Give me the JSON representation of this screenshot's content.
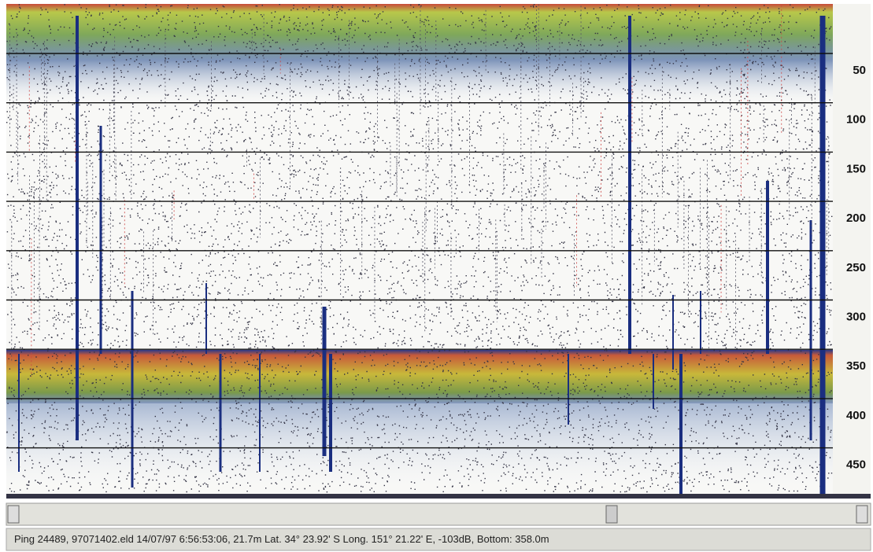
{
  "depth_scale": {
    "labels": [
      "50",
      "100",
      "150",
      "200",
      "250",
      "300",
      "350",
      "400",
      "450"
    ]
  },
  "status_bar": {
    "text": "Ping 24489, 97071402.eld 14/07/97 6:56:53:06, 21.7m Lat. 34° 23.92' S Long. 151° 21.22' E, -103dB, Bottom: 358.0m"
  }
}
